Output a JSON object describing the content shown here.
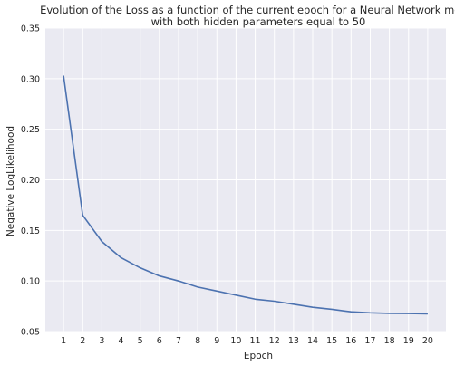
{
  "chart_data": {
    "type": "line",
    "title_lines": [
      "Evolution of the Loss as a function of the current epoch for a Neural Network model",
      "with both hidden parameters equal to 50"
    ],
    "xlabel": "Epoch",
    "ylabel": "Negative LogLikelihood",
    "xlim": [
      0.05,
      20.95
    ],
    "ylim": [
      0.05,
      0.35
    ],
    "grid": true,
    "x": [
      1,
      2,
      3,
      4,
      5,
      6,
      7,
      8,
      9,
      10,
      11,
      12,
      13,
      14,
      15,
      16,
      17,
      18,
      19,
      20
    ],
    "x_ticks": [
      "1",
      "2",
      "3",
      "4",
      "5",
      "6",
      "7",
      "8",
      "9",
      "10",
      "11",
      "12",
      "13",
      "14",
      "15",
      "16",
      "17",
      "18",
      "19",
      "20"
    ],
    "y_ticks": [
      "0.05",
      "0.10",
      "0.15",
      "0.20",
      "0.25",
      "0.30",
      "0.35"
    ],
    "y_tick_values": [
      0.05,
      0.1,
      0.15,
      0.2,
      0.25,
      0.3,
      0.35
    ],
    "series": [
      {
        "values": [
          0.303,
          0.165,
          0.139,
          0.123,
          0.113,
          0.105,
          0.1,
          0.094,
          0.09,
          0.086,
          0.082,
          0.08,
          0.077,
          0.074,
          0.072,
          0.0695,
          0.0685,
          0.068,
          0.0678,
          0.0675
        ],
        "color": "#4c72b0"
      }
    ],
    "background_color": "#eaeaf2",
    "grid_color": "#ffffff"
  }
}
